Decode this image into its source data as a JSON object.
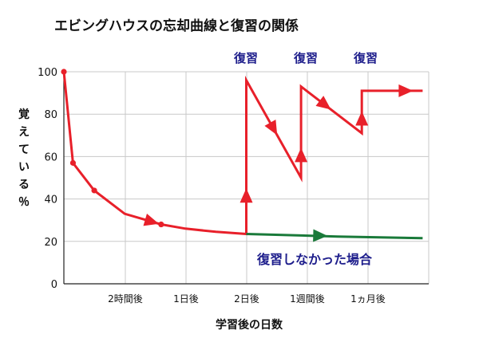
{
  "chart_data": {
    "type": "line",
    "title": "エビングハウスの忘却曲線と復習の関係",
    "xlabel": "学習後の日数",
    "ylabel": "覚えている％",
    "ylim": [
      0,
      100
    ],
    "yticks": [
      0,
      20,
      40,
      60,
      80,
      100
    ],
    "xticks": [
      "2時間後",
      "1日後",
      "2日後",
      "1週間後",
      "1ヵ月後"
    ],
    "grid": true,
    "review_labels": [
      "復習",
      "復習",
      "復習"
    ],
    "annotation": "復習しなかった場合",
    "colors": {
      "review_curve": "#e8202a",
      "no_review": "#1a7a3a",
      "label": "#1e1e8c"
    },
    "series": [
      {
        "name": "",
        "color": "#e8202a",
        "points": [
          [
            0,
            100
          ],
          [
            0.15,
            57
          ],
          [
            0.5,
            44
          ],
          [
            1.0,
            33
          ],
          [
            1.6,
            28
          ],
          [
            2.0,
            26
          ],
          [
            2.5,
            24.5
          ],
          [
            3.0,
            23.5
          ],
          [
            3.0,
            96
          ],
          [
            3.9,
            50
          ],
          [
            3.9,
            93
          ],
          [
            4.9,
            71
          ],
          [
            4.9,
            91
          ],
          [
            5.4,
            91
          ],
          [
            5.9,
            91
          ]
        ]
      },
      {
        "name": "",
        "color": "#1a7a3a",
        "points": [
          [
            3.0,
            23.5
          ],
          [
            4.5,
            22.3
          ],
          [
            5.9,
            21.5
          ]
        ]
      }
    ]
  }
}
